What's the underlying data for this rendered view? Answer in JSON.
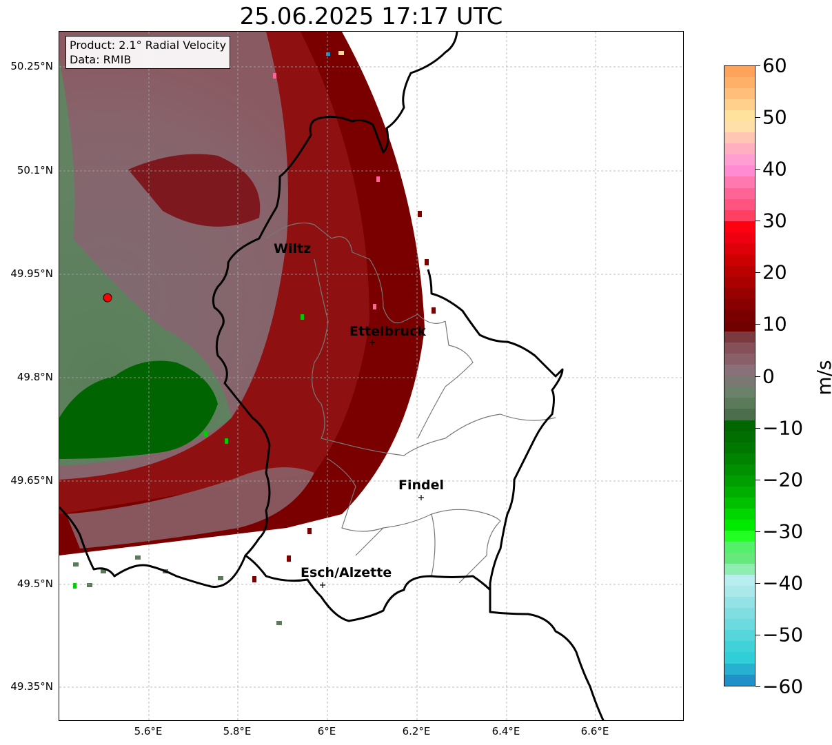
{
  "title": "25.06.2025 17:17 UTC",
  "info": {
    "product": "Product: 2.1° Radial Velocity",
    "data": "Data: RMIB"
  },
  "lat_ticks": [
    "50.25°N",
    "50.1°N",
    "49.95°N",
    "49.8°N",
    "49.65°N",
    "49.5°N",
    "49.35°N"
  ],
  "lon_ticks": [
    "5.6°E",
    "5.8°E",
    "6°E",
    "6.2°E",
    "6.4°E",
    "6.6°E"
  ],
  "cities": [
    {
      "name": "Wiltz"
    },
    {
      "name": "Ettelbruck"
    },
    {
      "name": "Findel"
    },
    {
      "name": "Esch/Alzette"
    }
  ],
  "colorbar": {
    "unit": "m/s",
    "min": -60,
    "max": 60,
    "ticks": [
      "60",
      "50",
      "40",
      "30",
      "20",
      "10",
      "0",
      "−10",
      "−20",
      "−30",
      "−40",
      "−50",
      "−60"
    ],
    "colors_top_to_bottom": [
      "#ffa35a",
      "#ffb068",
      "#ffbf7a",
      "#ffcf8c",
      "#ffe29c",
      "#ffe0a8",
      "#ffc6b4",
      "#ffafbf",
      "#ff9ed0",
      "#ff8bd2",
      "#ff78b0",
      "#ff6496",
      "#ff5480",
      "#ff4060",
      "#ff0010",
      "#ee0010",
      "#dd0008",
      "#cc0000",
      "#bb0000",
      "#aa0000",
      "#990000",
      "#880000",
      "#7a0000",
      "#700000",
      "#7a3a40",
      "#855058",
      "#8a6068",
      "#8a7078",
      "#7a7872",
      "#6a826a",
      "#5a7a5a",
      "#4d6e4d",
      "#006600",
      "#006e00",
      "#007800",
      "#008400",
      "#009000",
      "#009e00",
      "#00ae00",
      "#00c000",
      "#00d600",
      "#00ea00",
      "#22ff22",
      "#55f06a",
      "#66e87a",
      "#8eeeb0",
      "#b8eef0",
      "#aae8ea",
      "#94e2e6",
      "#80dee0",
      "#6cdade",
      "#56d6da",
      "#40d2d8",
      "#30ced6",
      "#28b0d0",
      "#1f90c8"
    ]
  },
  "radar_site": {
    "color": "#ff0000"
  }
}
